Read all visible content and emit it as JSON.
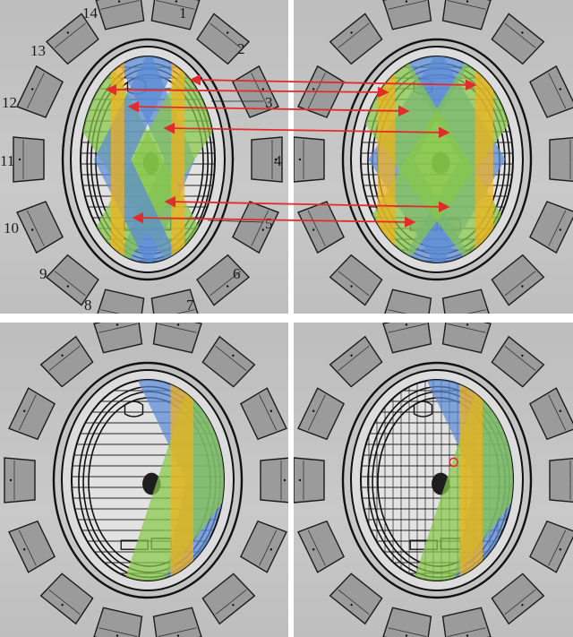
{
  "diagram": {
    "detector_labels": [
      "1",
      "2",
      "3",
      "4",
      "5",
      "6",
      "7",
      "8",
      "9",
      "10",
      "11",
      "12",
      "13",
      "14"
    ],
    "band_colors": {
      "blue": "#5a8ad6",
      "orange": "#f3b21a",
      "green": "#86c84a",
      "marker_red": "#e32b2b"
    }
  }
}
